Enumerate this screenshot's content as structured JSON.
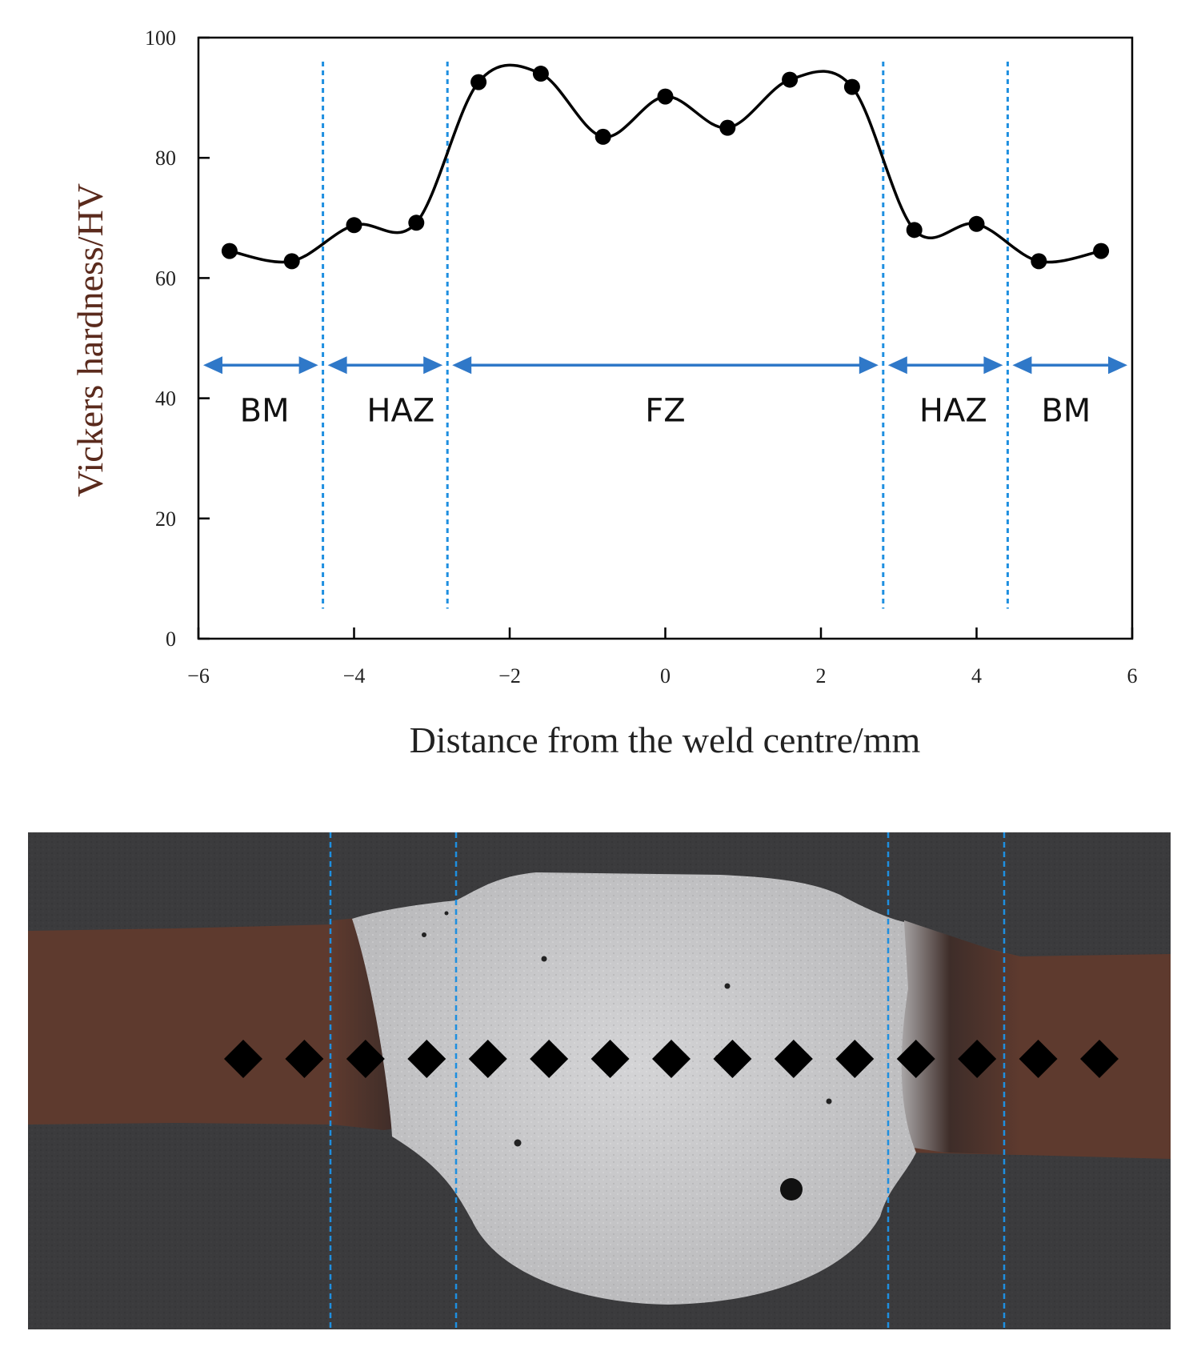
{
  "chart_data": {
    "type": "line",
    "xlabel": "Distance from the weld centre/mm",
    "ylabel": "Vickers hardness/HV",
    "xlim": [
      -6,
      6
    ],
    "ylim": [
      0,
      100
    ],
    "xticks": [
      -6,
      -4,
      -2,
      0,
      2,
      4,
      6
    ],
    "yticks": [
      0,
      20,
      40,
      60,
      80,
      100
    ],
    "xtick_labels": [
      "−6",
      "−4",
      "−2",
      "0",
      "2",
      "4",
      "6"
    ],
    "ytick_labels": [
      "0",
      "20",
      "40",
      "60",
      "80",
      "100"
    ],
    "grid": false,
    "series": [
      {
        "x": [
          -5.6,
          -4.8,
          -4.0,
          -3.2,
          -2.4,
          -1.6,
          -0.8,
          0.0,
          0.8,
          1.6,
          2.4,
          3.2,
          4.0,
          4.8,
          5.6
        ],
        "y": [
          64.5,
          62.8,
          68.8,
          69.2,
          92.6,
          94.0,
          83.5,
          90.2,
          85.0,
          93.0,
          91.8,
          68.0,
          69.0,
          62.8,
          64.5
        ],
        "color": "#000000"
      }
    ],
    "zone_boundaries": [
      -4.4,
      -2.8,
      2.8,
      4.4
    ],
    "zone_arrow_y": 45.5,
    "zones": [
      {
        "label": "BM",
        "x_from": -6.0,
        "x_to": -4.4,
        "label_x": -5.15
      },
      {
        "label": "HAZ",
        "x_from": -4.4,
        "x_to": -2.8,
        "label_x": -3.4
      },
      {
        "label": "FZ",
        "x_from": -2.8,
        "x_to": 2.8,
        "label_x": 0.0
      },
      {
        "label": "HAZ",
        "x_from": 2.8,
        "x_to": 4.4,
        "label_x": 3.7
      },
      {
        "label": "BM",
        "x_from": 4.4,
        "x_to": 6.0,
        "label_x": 5.15
      }
    ]
  },
  "micrograph": {
    "indent_count": 15,
    "colors": {
      "background": "#3b3b3d",
      "base_metal": "#5e3a2e",
      "fusion_zone": "#c9c9cb",
      "indent": "#000000",
      "guide_line": "#1e8fe0"
    }
  },
  "colors": {
    "curve": "#000000",
    "zone_line": "#1e8fe0",
    "zone_arrow": "#2f78c8",
    "ylabel_text": "#5a2a1c"
  }
}
